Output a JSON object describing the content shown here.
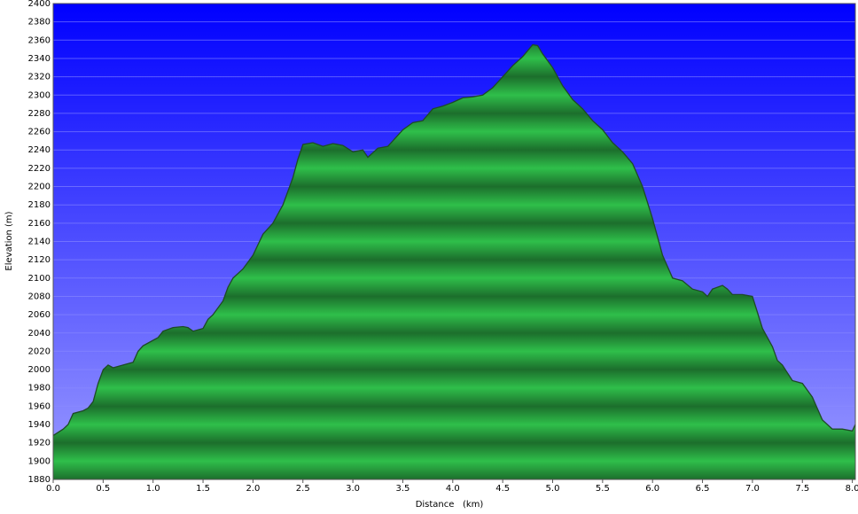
{
  "chart_data": {
    "type": "area",
    "x_label": "Distance   (km)",
    "y_label": "Elevation (m)",
    "color": "#2fbf4a",
    "outline_color": "#1e4a26",
    "background_colors": [
      "#0000ff",
      "#9c9cff"
    ],
    "grid": true,
    "xlim": [
      0,
      8.03
    ],
    "ylim": [
      1880,
      2400
    ],
    "xticks": [
      {
        "value": 0,
        "label": "0.0"
      },
      0.5,
      {
        "value": 1,
        "label": "1.0"
      },
      1.5,
      {
        "value": 2,
        "label": "2.0"
      },
      2.5,
      {
        "value": 3,
        "label": "3.0"
      },
      3.5,
      {
        "value": 4,
        "label": "4.0"
      },
      4.5,
      {
        "value": 5,
        "label": "5.0"
      },
      5.5,
      {
        "value": 6,
        "label": "6.0"
      },
      6.5,
      {
        "value": 7,
        "label": "7.0"
      },
      7.5,
      {
        "value": 8,
        "label": "8.0"
      }
    ],
    "yticks": [
      1880,
      1900,
      1920,
      1940,
      1960,
      1980,
      2000,
      2020,
      2040,
      2060,
      2080,
      2100,
      2120,
      2140,
      2160,
      2180,
      2200,
      2220,
      2240,
      2260,
      2280,
      2300,
      2320,
      2340,
      2360,
      2380,
      2400
    ],
    "x": [
      0,
      0.1,
      0.15,
      0.2,
      0.3,
      0.35,
      0.4,
      0.45,
      0.5,
      0.55,
      0.6,
      0.7,
      0.8,
      0.85,
      0.9,
      1.0,
      1.05,
      1.1,
      1.2,
      1.3,
      1.35,
      1.4,
      1.5,
      1.55,
      1.6,
      1.7,
      1.75,
      1.8,
      1.9,
      2.0,
      2.1,
      2.2,
      2.3,
      2.4,
      2.45,
      2.5,
      2.6,
      2.7,
      2.8,
      2.9,
      3.0,
      3.1,
      3.15,
      3.25,
      3.35,
      3.5,
      3.6,
      3.7,
      3.8,
      3.9,
      4.0,
      4.1,
      4.2,
      4.3,
      4.4,
      4.5,
      4.6,
      4.7,
      4.8,
      4.85,
      4.9,
      5.0,
      5.1,
      5.2,
      5.3,
      5.4,
      5.5,
      5.6,
      5.7,
      5.8,
      5.9,
      6.0,
      6.1,
      6.2,
      6.3,
      6.4,
      6.5,
      6.55,
      6.6,
      6.7,
      6.75,
      6.8,
      6.9,
      7.0,
      7.1,
      7.2,
      7.25,
      7.3,
      7.4,
      7.5,
      7.6,
      7.7,
      7.8,
      7.9,
      8.0,
      8.03
    ],
    "values": [
      1928,
      1935,
      1940,
      1952,
      1955,
      1958,
      1965,
      1985,
      2000,
      2005,
      2002,
      2005,
      2008,
      2020,
      2026,
      2032,
      2035,
      2042,
      2046,
      2047,
      2046,
      2042,
      2045,
      2055,
      2060,
      2075,
      2090,
      2100,
      2110,
      2125,
      2148,
      2160,
      2180,
      2210,
      2230,
      2246,
      2248,
      2244,
      2247,
      2245,
      2238,
      2240,
      2232,
      2242,
      2244,
      2262,
      2270,
      2272,
      2285,
      2288,
      2292,
      2297,
      2298,
      2300,
      2308,
      2320,
      2332,
      2342,
      2355,
      2354,
      2345,
      2330,
      2310,
      2295,
      2285,
      2272,
      2262,
      2248,
      2238,
      2225,
      2200,
      2165,
      2125,
      2100,
      2097,
      2088,
      2085,
      2080,
      2088,
      2092,
      2088,
      2082,
      2082,
      2080,
      2045,
      2025,
      2010,
      2005,
      1988,
      1985,
      1970,
      1945,
      1935,
      1935,
      1933,
      1940
    ]
  }
}
